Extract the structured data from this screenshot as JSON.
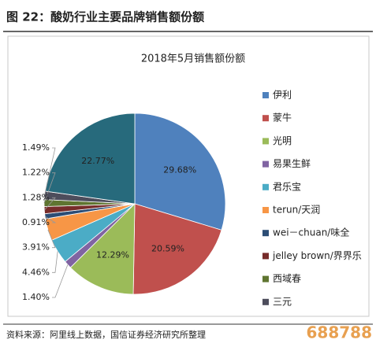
{
  "header": {
    "title": "图 22：酸奶行业主要品牌销售额份额"
  },
  "chart_data": {
    "type": "pie",
    "title": "2018年5月销售额份额",
    "categories": [
      "伊利",
      "蒙牛",
      "光明",
      "易果生鲜",
      "君乐宝",
      "terun/天润",
      "wei－chuan/味全",
      "jelley brown/界界乐",
      "西域春",
      "三元",
      null
    ],
    "values": [
      29.68,
      20.59,
      12.29,
      1.4,
      4.46,
      3.91,
      0.91,
      1.28,
      1.22,
      1.49,
      22.77
    ],
    "value_labels": [
      "29.68%",
      "20.59%",
      "12.29%",
      "1.40%",
      "4.46%",
      "3.91%",
      "0.91%",
      "1.28%",
      "1.22%",
      "1.49%",
      "22.77%"
    ],
    "colors": [
      "#4f81bd",
      "#c0504d",
      "#9bbb59",
      "#8064a2",
      "#4bacc6",
      "#f79646",
      "#2c4d75",
      "#772c2a",
      "#5f7530",
      "#4d4d5c",
      "#276a7c"
    ]
  },
  "source": "资料来源：阿里线上数据，国信证券经济研究所整理",
  "watermark": "688788"
}
